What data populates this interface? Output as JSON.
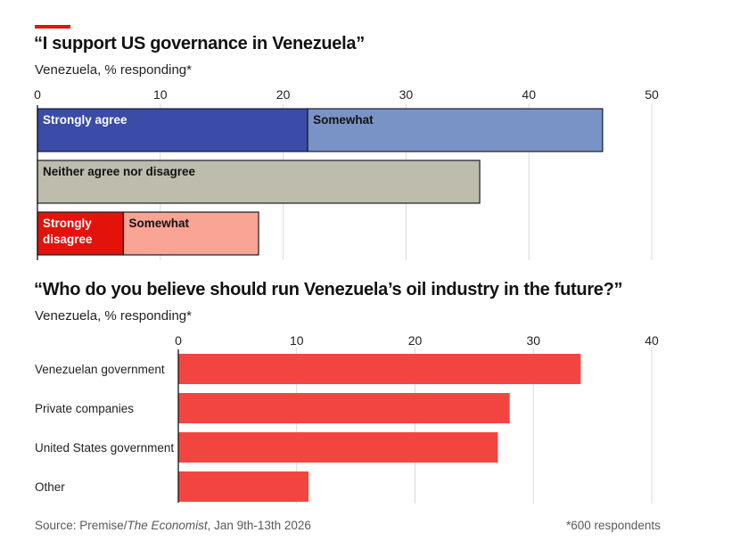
{
  "chart_data": [
    {
      "type": "bar",
      "orientation": "horizontal",
      "stacked": true,
      "title": "“I support US governance in Venezuela”",
      "subtitle": "Venezuela, % responding*",
      "xlim": [
        0,
        50
      ],
      "xticks": [
        "0",
        "10",
        "20",
        "30",
        "40",
        "50"
      ],
      "grid": true,
      "rows": [
        {
          "segments": [
            {
              "label": "Strongly agree",
              "value": 22,
              "color": "#3a4ba8",
              "text_color": "#ffffff"
            },
            {
              "label": "Somewhat",
              "value": 24,
              "color": "#7a93c6",
              "text_color": "#121212"
            }
          ]
        },
        {
          "segments": [
            {
              "label": "Neither agree nor disagree",
              "value": 36,
              "color": "#bdbcad",
              "text_color": "#121212"
            }
          ]
        },
        {
          "segments": [
            {
              "label": "Strongly disagree",
              "label_lines": [
                "Strongly",
                "disagree"
              ],
              "value": 7,
              "color": "#e3120b",
              "text_color": "#ffffff"
            },
            {
              "label": "Somewhat",
              "value": 11,
              "color": "#f9a495",
              "text_color": "#121212"
            }
          ]
        }
      ]
    },
    {
      "type": "bar",
      "orientation": "horizontal",
      "title": "“Who do you believe should run Venezuela’s oil industry in the future?”",
      "subtitle": "Venezuela, % responding*",
      "xlim": [
        0,
        40
      ],
      "xticks": [
        "0",
        "10",
        "20",
        "30",
        "40"
      ],
      "grid": true,
      "categories": [
        "Venezuelan government",
        "Private companies",
        "United States government",
        "Other"
      ],
      "values": [
        34,
        28,
        27,
        11
      ],
      "color": "#f34540"
    }
  ],
  "footer": {
    "source_prefix": "Source: Premise/",
    "source_italic": "The Economist",
    "source_suffix": ", Jan 9th-13th 2026",
    "note": "*600 respondents"
  },
  "colors": {
    "accent_rule": "#e3120b",
    "grid": "#d9d9d9",
    "axis": "#121212"
  }
}
